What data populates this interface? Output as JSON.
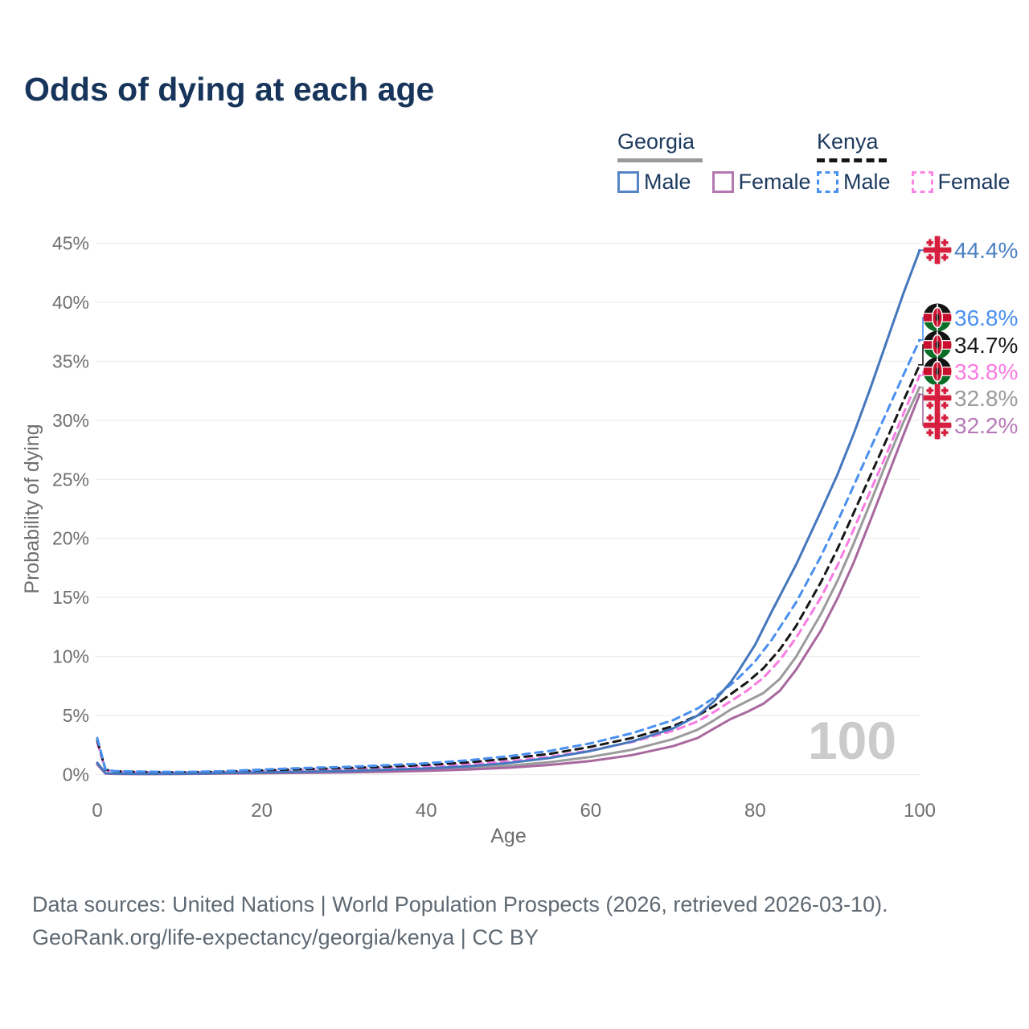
{
  "title": "Odds of dying at each age",
  "legend": {
    "groups": [
      {
        "name": "Georgia",
        "line_style": "solid",
        "underline_color": "#9a9a9a",
        "items": [
          {
            "label": "Male",
            "color": "#5585c5",
            "dashed": false
          },
          {
            "label": "Female",
            "color": "#b678b1",
            "dashed": false
          }
        ]
      },
      {
        "name": "Kenya",
        "line_style": "dashed",
        "underline_color": "#151515",
        "items": [
          {
            "label": "Male",
            "color": "#4a90f0",
            "dashed": true
          },
          {
            "label": "Female",
            "color": "#fb86e3",
            "dashed": true
          }
        ]
      }
    ]
  },
  "chart_data": {
    "type": "line",
    "title": "Odds of dying at each age",
    "xlabel": "Age",
    "ylabel": "Probability of dying",
    "xlim": [
      0,
      100
    ],
    "ylim": [
      0,
      45
    ],
    "x_ticks": [
      0,
      20,
      40,
      60,
      80,
      100
    ],
    "y_ticks": [
      0,
      5,
      10,
      15,
      20,
      25,
      30,
      35,
      40,
      45
    ],
    "y_tick_suffix": "%",
    "grid": "horizontal",
    "watermark": "100",
    "legend_position": "top-right",
    "series": [
      {
        "id": "georgia-all",
        "name": "Georgia",
        "country": "Georgia",
        "sex": "All",
        "color": "#9b9b9b",
        "label_color": "#9b9b9b",
        "dashed": false,
        "value_label": "32.8%",
        "flag": "georgia",
        "points": [
          [
            0,
            0.92
          ],
          [
            1,
            0.1
          ],
          [
            2,
            0.07
          ],
          [
            5,
            0.05
          ],
          [
            10,
            0.06
          ],
          [
            15,
            0.1
          ],
          [
            20,
            0.15
          ],
          [
            25,
            0.19
          ],
          [
            30,
            0.24
          ],
          [
            35,
            0.31
          ],
          [
            40,
            0.4
          ],
          [
            45,
            0.54
          ],
          [
            50,
            0.75
          ],
          [
            55,
            1.05
          ],
          [
            60,
            1.5
          ],
          [
            65,
            2.1
          ],
          [
            70,
            3.0
          ],
          [
            73,
            3.8
          ],
          [
            75,
            4.6
          ],
          [
            77,
            5.5
          ],
          [
            79,
            6.2
          ],
          [
            81,
            6.9
          ],
          [
            83,
            8.1
          ],
          [
            85,
            10.0
          ],
          [
            88,
            13.6
          ],
          [
            90,
            16.4
          ],
          [
            92,
            19.6
          ],
          [
            94,
            23.0
          ],
          [
            96,
            26.5
          ],
          [
            98,
            29.8
          ],
          [
            100,
            32.8
          ]
        ]
      },
      {
        "id": "georgia-female",
        "name": "Georgia Female",
        "country": "Georgia",
        "sex": "Female",
        "color": "#a8689f",
        "label_color": "#b77ab8",
        "dashed": false,
        "value_label": "32.2%",
        "flag": "georgia",
        "points": [
          [
            0,
            0.85
          ],
          [
            1,
            0.09
          ],
          [
            2,
            0.06
          ],
          [
            5,
            0.04
          ],
          [
            10,
            0.05
          ],
          [
            15,
            0.08
          ],
          [
            20,
            0.11
          ],
          [
            25,
            0.14
          ],
          [
            30,
            0.18
          ],
          [
            35,
            0.24
          ],
          [
            40,
            0.31
          ],
          [
            45,
            0.42
          ],
          [
            50,
            0.58
          ],
          [
            55,
            0.82
          ],
          [
            60,
            1.15
          ],
          [
            65,
            1.65
          ],
          [
            70,
            2.4
          ],
          [
            73,
            3.1
          ],
          [
            75,
            3.9
          ],
          [
            77,
            4.7
          ],
          [
            79,
            5.3
          ],
          [
            81,
            6.0
          ],
          [
            83,
            7.1
          ],
          [
            85,
            8.9
          ],
          [
            88,
            12.2
          ],
          [
            90,
            14.9
          ],
          [
            92,
            18.0
          ],
          [
            94,
            21.5
          ],
          [
            96,
            25.1
          ],
          [
            98,
            28.7
          ],
          [
            100,
            32.2
          ]
        ]
      },
      {
        "id": "kenya-female",
        "name": "Kenya Female",
        "country": "Kenya",
        "sex": "Female",
        "color": "#f97ae1",
        "label_color": "#f97ae1",
        "dashed": true,
        "value_label": "33.8%",
        "flag": "kenya",
        "points": [
          [
            0,
            2.7
          ],
          [
            1,
            0.38
          ],
          [
            2,
            0.25
          ],
          [
            5,
            0.2
          ],
          [
            10,
            0.16
          ],
          [
            15,
            0.2
          ],
          [
            20,
            0.28
          ],
          [
            25,
            0.37
          ],
          [
            30,
            0.45
          ],
          [
            35,
            0.55
          ],
          [
            40,
            0.68
          ],
          [
            45,
            0.86
          ],
          [
            50,
            1.12
          ],
          [
            55,
            1.5
          ],
          [
            60,
            2.05
          ],
          [
            65,
            2.75
          ],
          [
            70,
            3.7
          ],
          [
            73,
            4.5
          ],
          [
            75,
            5.3
          ],
          [
            77,
            6.2
          ],
          [
            79,
            7.1
          ],
          [
            81,
            8.2
          ],
          [
            83,
            9.7
          ],
          [
            85,
            11.6
          ],
          [
            88,
            15.0
          ],
          [
            90,
            17.7
          ],
          [
            92,
            20.8
          ],
          [
            94,
            24.0
          ],
          [
            96,
            27.2
          ],
          [
            98,
            30.5
          ],
          [
            100,
            33.8
          ]
        ]
      },
      {
        "id": "kenya-all",
        "name": "Kenya",
        "country": "Kenya",
        "sex": "All",
        "color": "#161616",
        "label_color": "#1a1a1a",
        "dashed": true,
        "value_label": "34.7%",
        "flag": "kenya",
        "points": [
          [
            0,
            2.9
          ],
          [
            1,
            0.42
          ],
          [
            2,
            0.28
          ],
          [
            5,
            0.23
          ],
          [
            10,
            0.19
          ],
          [
            15,
            0.24
          ],
          [
            20,
            0.35
          ],
          [
            25,
            0.46
          ],
          [
            30,
            0.55
          ],
          [
            35,
            0.66
          ],
          [
            40,
            0.82
          ],
          [
            45,
            1.03
          ],
          [
            50,
            1.35
          ],
          [
            55,
            1.75
          ],
          [
            60,
            2.35
          ],
          [
            65,
            3.1
          ],
          [
            70,
            4.1
          ],
          [
            73,
            5.0
          ],
          [
            75,
            5.8
          ],
          [
            77,
            6.8
          ],
          [
            79,
            7.8
          ],
          [
            81,
            9.0
          ],
          [
            83,
            10.6
          ],
          [
            85,
            12.6
          ],
          [
            88,
            16.3
          ],
          [
            90,
            19.1
          ],
          [
            92,
            22.2
          ],
          [
            94,
            25.3
          ],
          [
            96,
            28.4
          ],
          [
            98,
            31.6
          ],
          [
            100,
            34.7
          ]
        ]
      },
      {
        "id": "kenya-male",
        "name": "Kenya Male",
        "country": "Kenya",
        "sex": "Male",
        "color": "#4a90f0",
        "label_color": "#4a90f0",
        "dashed": true,
        "value_label": "36.8%",
        "flag": "kenya",
        "points": [
          [
            0,
            3.1
          ],
          [
            1,
            0.45
          ],
          [
            2,
            0.3
          ],
          [
            5,
            0.25
          ],
          [
            10,
            0.22
          ],
          [
            15,
            0.28
          ],
          [
            20,
            0.42
          ],
          [
            25,
            0.55
          ],
          [
            30,
            0.65
          ],
          [
            35,
            0.78
          ],
          [
            40,
            0.95
          ],
          [
            45,
            1.2
          ],
          [
            50,
            1.55
          ],
          [
            55,
            2.0
          ],
          [
            60,
            2.65
          ],
          [
            65,
            3.5
          ],
          [
            70,
            4.6
          ],
          [
            73,
            5.6
          ],
          [
            75,
            6.5
          ],
          [
            77,
            7.6
          ],
          [
            78,
            8.2
          ],
          [
            80,
            9.6
          ],
          [
            82,
            11.4
          ],
          [
            85,
            14.6
          ],
          [
            88,
            18.5
          ],
          [
            90,
            21.4
          ],
          [
            92,
            24.5
          ],
          [
            94,
            27.6
          ],
          [
            96,
            30.7
          ],
          [
            98,
            33.8
          ],
          [
            100,
            36.8
          ]
        ]
      },
      {
        "id": "georgia-male",
        "name": "Georgia Male",
        "country": "Georgia",
        "sex": "Male",
        "color": "#4577bd",
        "label_color": "#4d82c4",
        "dashed": false,
        "value_label": "44.4%",
        "flag": "georgia",
        "points": [
          [
            0,
            1.0
          ],
          [
            1,
            0.12
          ],
          [
            2,
            0.08
          ],
          [
            5,
            0.06
          ],
          [
            10,
            0.07
          ],
          [
            15,
            0.12
          ],
          [
            20,
            0.18
          ],
          [
            25,
            0.24
          ],
          [
            30,
            0.3
          ],
          [
            35,
            0.4
          ],
          [
            40,
            0.52
          ],
          [
            45,
            0.7
          ],
          [
            50,
            0.98
          ],
          [
            55,
            1.4
          ],
          [
            60,
            2.0
          ],
          [
            65,
            2.8
          ],
          [
            70,
            3.9
          ],
          [
            73,
            5.0
          ],
          [
            75,
            6.2
          ],
          [
            77,
            7.8
          ],
          [
            78,
            8.8
          ],
          [
            80,
            11.0
          ],
          [
            82,
            13.8
          ],
          [
            85,
            17.8
          ],
          [
            88,
            22.3
          ],
          [
            90,
            25.4
          ],
          [
            92,
            28.9
          ],
          [
            94,
            32.7
          ],
          [
            96,
            36.7
          ],
          [
            98,
            40.7
          ],
          [
            100,
            44.4
          ]
        ]
      }
    ]
  },
  "footer": {
    "line1": "Data sources: United Nations | World Population Prospects (2026, retrieved 2026-03-10).",
    "line2": "GeoRank.org/life-expectancy/georgia/kenya | CC BY"
  },
  "colors": {
    "title": "#17345b",
    "grid": "#ededed",
    "tick_text": "#6f6f6f",
    "watermark": "#cbcbcb",
    "georgia_flag_red": "#d81e3e",
    "kenya_flag_red": "#c8102e",
    "kenya_flag_green": "#0a6e26",
    "kenya_flag_black": "#141414"
  }
}
